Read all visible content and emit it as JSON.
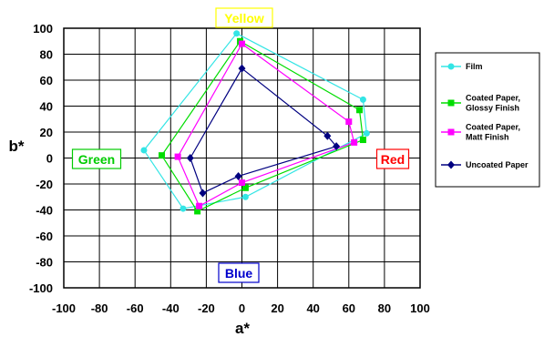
{
  "chart_data": {
    "type": "scatter",
    "xlabel": "a*",
    "ylabel": "b*",
    "xlim": [
      -100,
      100
    ],
    "ylim": [
      -100,
      100
    ],
    "xticks": [
      "-100",
      "-80",
      "-60",
      "-40",
      "-20",
      "0",
      "20",
      "40",
      "60",
      "80",
      "100"
    ],
    "yticks": [
      "100",
      "80",
      "60",
      "40",
      "20",
      "0",
      "-20",
      "-40",
      "-60",
      "-80",
      "-100"
    ],
    "grid": true,
    "legend_position": "right",
    "region_labels": [
      {
        "text": "Yellow",
        "color": "#ffff00"
      },
      {
        "text": "Red",
        "color": "#ff0000"
      },
      {
        "text": "Green",
        "color": "#00cc00"
      },
      {
        "text": "Blue",
        "color": "#0000cc"
      }
    ],
    "series": [
      {
        "name": "Film",
        "color": "#33e5e5",
        "marker": "circle",
        "points": [
          [
            -3,
            96
          ],
          [
            68,
            45
          ],
          [
            70,
            19
          ],
          [
            2,
            -30
          ],
          [
            -33,
            -39
          ],
          [
            -55,
            6
          ]
        ]
      },
      {
        "name": "Coated Paper, Glossy Finish",
        "color": "#00dd00",
        "marker": "square",
        "points": [
          [
            -1,
            90
          ],
          [
            66,
            37
          ],
          [
            68,
            14
          ],
          [
            2,
            -23
          ],
          [
            -25,
            -41
          ],
          [
            -45,
            2
          ]
        ]
      },
      {
        "name": "Coated Paper, Matt Finish",
        "color": "#ff00ff",
        "marker": "square",
        "points": [
          [
            0,
            88
          ],
          [
            60,
            28
          ],
          [
            63,
            12
          ],
          [
            0,
            -19
          ],
          [
            -24,
            -37
          ],
          [
            -36,
            1
          ]
        ]
      },
      {
        "name": "Uncoated Paper",
        "color": "#000080",
        "marker": "diamond",
        "points": [
          [
            0,
            69
          ],
          [
            48,
            17
          ],
          [
            53,
            9
          ],
          [
            -2,
            -14
          ],
          [
            -22,
            -27
          ],
          [
            -29,
            0
          ]
        ]
      }
    ]
  }
}
